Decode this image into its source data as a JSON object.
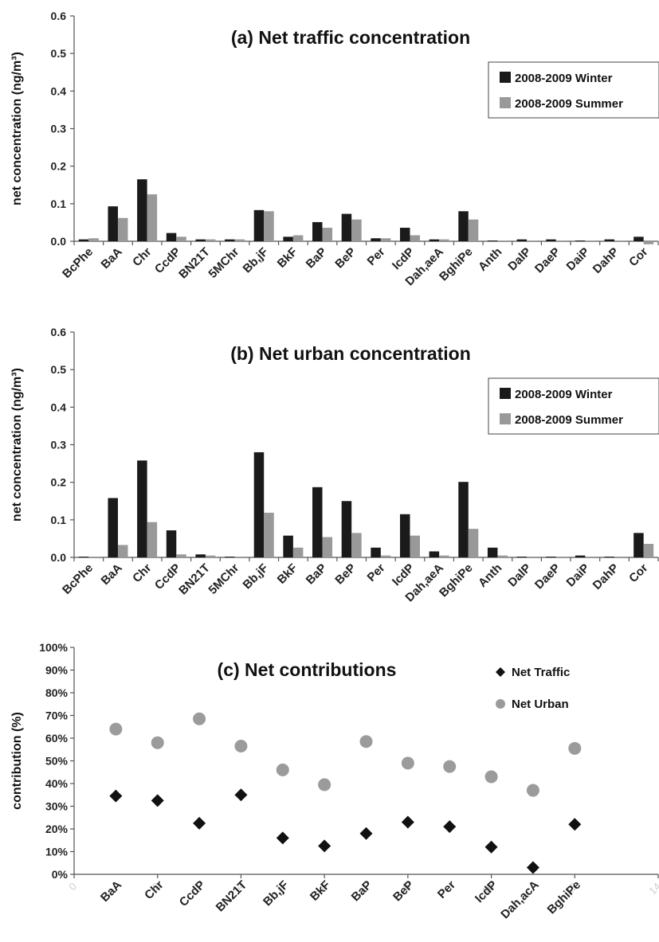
{
  "colors": {
    "winter": "#1a1a1a",
    "summer": "#999999",
    "traffic": "#111111",
    "urban": "#9b9b9b"
  },
  "chart_data": [
    {
      "type": "bar",
      "title": "(a) Net traffic concentration",
      "ylabel": "net concentration  (ng/m³)",
      "ylim": [
        0,
        0.6
      ],
      "yticks": [
        "0.0",
        "0.1",
        "0.2",
        "0.3",
        "0.4",
        "0.5",
        "0.6"
      ],
      "grid": false,
      "legend": "top-right",
      "categories": [
        "BcPhe",
        "BaA",
        "Chr",
        "CcdP",
        "BN21T",
        "5MChr",
        "Bb,jF",
        "BkF",
        "BaP",
        "BeP",
        "Per",
        "IcdP",
        "Dah,aeA",
        "BghiPe",
        "Anth",
        "DalP",
        "DaeP",
        "DaiP",
        "DahP",
        "Cor"
      ],
      "series": [
        {
          "name": "2008-2009  Winter",
          "values": [
            0.005,
            0.093,
            0.165,
            0.022,
            0.005,
            0.005,
            0.083,
            0.012,
            0.051,
            0.073,
            0.008,
            0.036,
            0.005,
            0.08,
            0.002,
            0.005,
            0.005,
            0.002,
            0.005,
            0.012
          ]
        },
        {
          "name": "2008-2009  Summer",
          "values": [
            0.008,
            0.062,
            0.125,
            0.012,
            0.005,
            0.005,
            0.08,
            0.016,
            0.036,
            0.058,
            0.008,
            0.016,
            0.005,
            0.058,
            0.002,
            0.002,
            0.002,
            0.002,
            0.002,
            -0.008
          ]
        }
      ]
    },
    {
      "type": "bar",
      "title": "(b) Net urban concentration",
      "ylabel": "net concentration  (ng/m³)",
      "ylim": [
        0,
        0.6
      ],
      "yticks": [
        "0.0",
        "0.1",
        "0.2",
        "0.3",
        "0.4",
        "0.5",
        "0.6"
      ],
      "grid": false,
      "legend": "top-right",
      "categories": [
        "BcPhe",
        "BaA",
        "Chr",
        "CcdP",
        "BN21T",
        "5MChr",
        "Bb,jF",
        "BkF",
        "BaP",
        "BeP",
        "Per",
        "IcdP",
        "Dah,aeA",
        "BghiPe",
        "Anth",
        "DalP",
        "DaeP",
        "DaiP",
        "DahP",
        "Cor"
      ],
      "series": [
        {
          "name": "2008-2009  Winter",
          "values": [
            0.002,
            0.158,
            0.258,
            0.072,
            0.008,
            0.002,
            0.28,
            0.058,
            0.187,
            0.15,
            0.026,
            0.115,
            0.016,
            0.201,
            0.026,
            0.002,
            0.002,
            0.005,
            0.002,
            0.065
          ]
        },
        {
          "name": "2008-2009  Summer",
          "values": [
            0.002,
            0.033,
            0.094,
            0.008,
            0.005,
            0.002,
            0.119,
            0.026,
            0.054,
            0.065,
            0.005,
            0.058,
            0.005,
            0.076,
            0.005,
            0.002,
            0.002,
            0.002,
            0.002,
            0.036
          ]
        }
      ]
    },
    {
      "type": "scatter",
      "title": "(c) Net contributions",
      "ylabel": "contribution (%)",
      "ylim": [
        0,
        100
      ],
      "yticks": [
        "0%",
        "10%",
        "20%",
        "30%",
        "40%",
        "50%",
        "60%",
        "70%",
        "80%",
        "90%",
        "100%"
      ],
      "xlim": [
        0,
        14
      ],
      "xticks": [
        "0",
        "2",
        "4",
        "6",
        "8",
        "10",
        "12",
        "14"
      ],
      "grid": false,
      "legend": "top-right",
      "categories": [
        "BaA",
        "Chr",
        "CcdP",
        "BN21T",
        "Bb,jF",
        "BkF",
        "BaP",
        "BeP",
        "Per",
        "IcdP",
        "Dah,acA",
        "BghiPe"
      ],
      "x": [
        1,
        2,
        3,
        4,
        5,
        6,
        7,
        8,
        9,
        10,
        11,
        12
      ],
      "series": [
        {
          "name": "Net Traffic",
          "values": [
            34.5,
            32.5,
            22.5,
            35,
            16,
            12.5,
            18,
            23,
            21,
            12,
            3,
            22
          ]
        },
        {
          "name": "Net Urban",
          "values": [
            64,
            58,
            68.5,
            56.5,
            46,
            39.5,
            58.5,
            49,
            47.5,
            43,
            37,
            55.5
          ]
        }
      ]
    }
  ]
}
